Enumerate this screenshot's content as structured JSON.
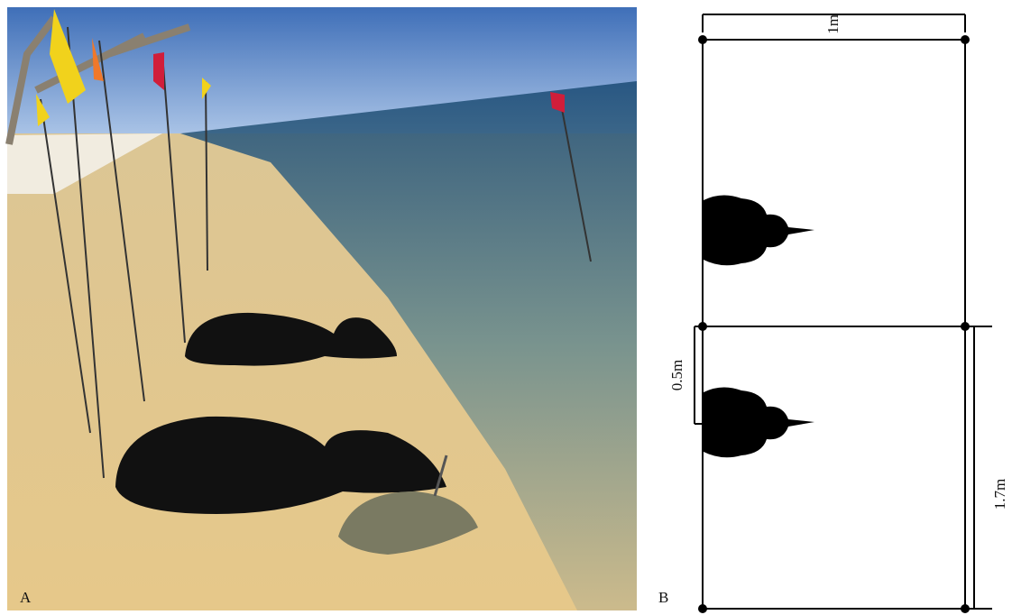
{
  "labels": {
    "a": "A",
    "b": "B"
  },
  "dimensions": {
    "width": "1m",
    "spacing": "0.5m",
    "length": "1.7m"
  }
}
